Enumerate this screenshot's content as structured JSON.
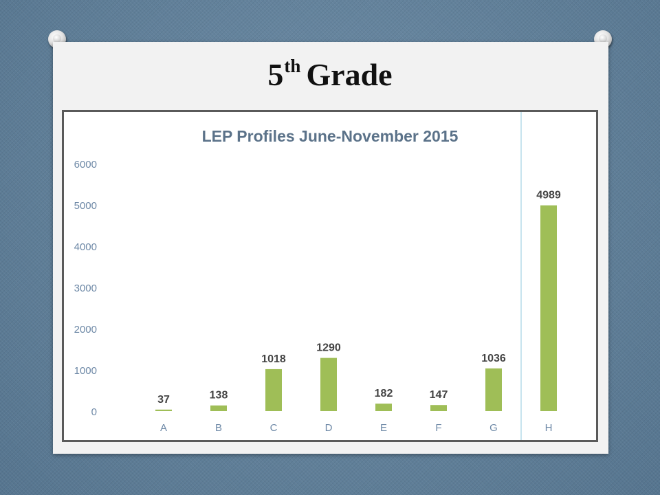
{
  "slide": {
    "title_main": "5",
    "title_sup": "th",
    "title_rest": "Grade"
  },
  "chart_data": {
    "type": "bar",
    "title": "LEP Profiles June-November 2015",
    "categories": [
      "A",
      "B",
      "C",
      "D",
      "E",
      "F",
      "G",
      "H"
    ],
    "values": [
      37,
      138,
      1018,
      1290,
      182,
      147,
      1036,
      4989
    ],
    "data_labels": [
      "37",
      "138",
      "1018",
      "1290",
      "182",
      "147",
      "1036",
      "4989"
    ],
    "yticks": [
      0,
      1000,
      2000,
      3000,
      4000,
      5000,
      6000
    ],
    "ytick_labels": [
      "0",
      "1000",
      "2000",
      "3000",
      "4000",
      "5000",
      "6000"
    ],
    "ylim": [
      0,
      6000
    ],
    "xlabel": "",
    "ylabel": "",
    "grid": false,
    "bar_color": "#9fbe57",
    "title_color": "#5b7289",
    "axis_label_color": "#6d88a6"
  }
}
